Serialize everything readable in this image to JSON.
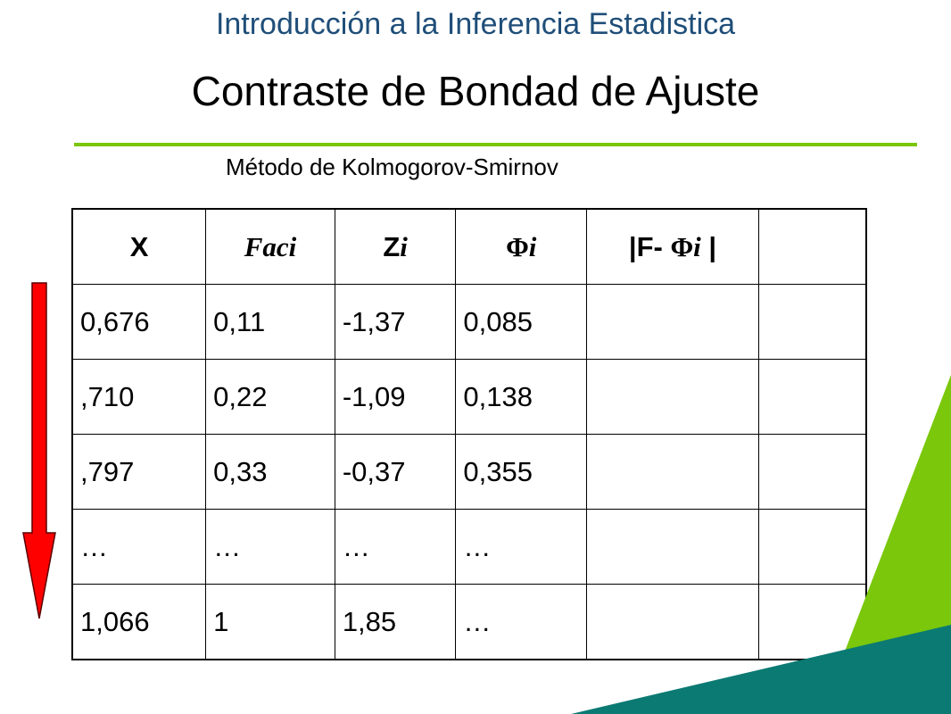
{
  "header": {
    "title": "Introducción a la Inferencia Estadistica",
    "slide_title": "Contraste de Bondad de Ajuste",
    "subtitle": "Método de Kolmogorov-Smirnov"
  },
  "table": {
    "headers": {
      "x": "X",
      "faci": "Faci",
      "z_letter": "Z",
      "z_sub": "i",
      "phi": "Φ",
      "phi_sub": "i",
      "diff_left": "|F- ",
      "diff_phi": "Φ",
      "diff_sub": "i",
      "diff_right": " |",
      "extra": ""
    },
    "rows": [
      [
        "0,676",
        "0,11",
        "-1,37",
        "0,085",
        "",
        ""
      ],
      [
        ",710",
        "0,22",
        "-1,09",
        "0,138",
        "",
        ""
      ],
      [
        ",797",
        "0,33",
        "-0,37",
        "0,355",
        "",
        ""
      ],
      [
        "…",
        "…",
        "…",
        "…",
        "",
        ""
      ],
      [
        "1,066",
        "1",
        "1,85",
        "…",
        "",
        ""
      ]
    ]
  },
  "colors": {
    "header_title": "#1f4e79",
    "divider": "#7ac70c",
    "arrow": "#ff0000",
    "deco_green": "#7ac70c",
    "deco_teal": "#0b7a73"
  }
}
